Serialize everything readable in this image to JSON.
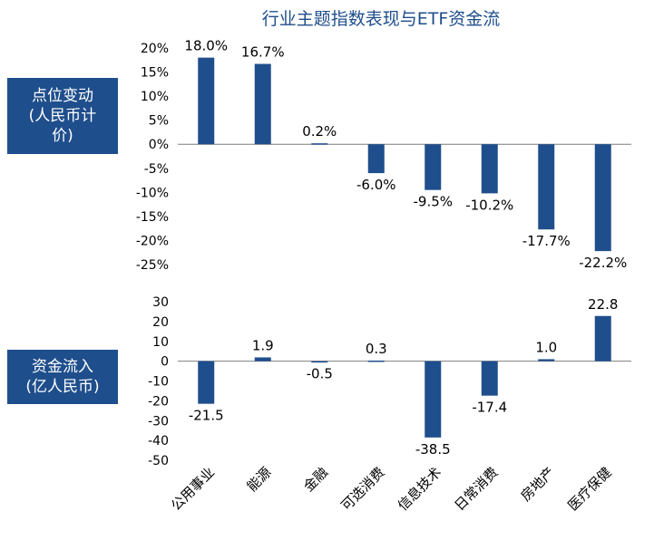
{
  "title": "行业主题指数表现与ETF资金流",
  "labels": {
    "top": "点位变动\n(人民币计\n价)",
    "bottom": "资金流入\n(亿人民币)"
  },
  "colors": {
    "bar": "#1f4e8c",
    "label_bg": "#1f4e8c",
    "text": "#000000"
  },
  "chart_data": [
    {
      "type": "bar",
      "title": "行业主题指数表现与ETF资金流",
      "ylabel": "点位变动(人民币计价)",
      "categories": [
        "公用事业",
        "能源",
        "金融",
        "可选消费",
        "信息技术",
        "日常消费",
        "房地产",
        "医疗保健"
      ],
      "values": [
        18.0,
        16.7,
        0.2,
        -6.0,
        -9.5,
        -10.2,
        -17.7,
        -22.2
      ],
      "value_labels": [
        "18.0%",
        "16.7%",
        "0.2%",
        "-6.0%",
        "-9.5%",
        "-10.2%",
        "-17.7%",
        "-22.2%"
      ],
      "ylim": [
        -25,
        20
      ],
      "yticks": [
        20,
        15,
        10,
        5,
        0,
        -5,
        -10,
        -15,
        -20,
        -25
      ],
      "ytick_labels": [
        "20%",
        "15%",
        "10%",
        "5%",
        "0%",
        "-5%",
        "-10%",
        "-15%",
        "-20%",
        "-25%"
      ]
    },
    {
      "type": "bar",
      "ylabel": "资金流入(亿人民币)",
      "categories": [
        "公用事业",
        "能源",
        "金融",
        "可选消费",
        "信息技术",
        "日常消费",
        "房地产",
        "医疗保健"
      ],
      "values": [
        -21.5,
        1.9,
        -0.5,
        0.3,
        -38.5,
        -17.4,
        1.0,
        22.8
      ],
      "value_labels": [
        "-21.5",
        "1.9",
        "-0.5",
        "0.3",
        "-38.5",
        "-17.4",
        "1.0",
        "22.8"
      ],
      "ylim": [
        -50,
        30
      ],
      "yticks": [
        30,
        20,
        10,
        0,
        -10,
        -20,
        -30,
        -40,
        -50
      ],
      "ytick_labels": [
        "30",
        "20",
        "10",
        "0",
        "-10",
        "-20",
        "-30",
        "-40",
        "-50"
      ]
    }
  ]
}
